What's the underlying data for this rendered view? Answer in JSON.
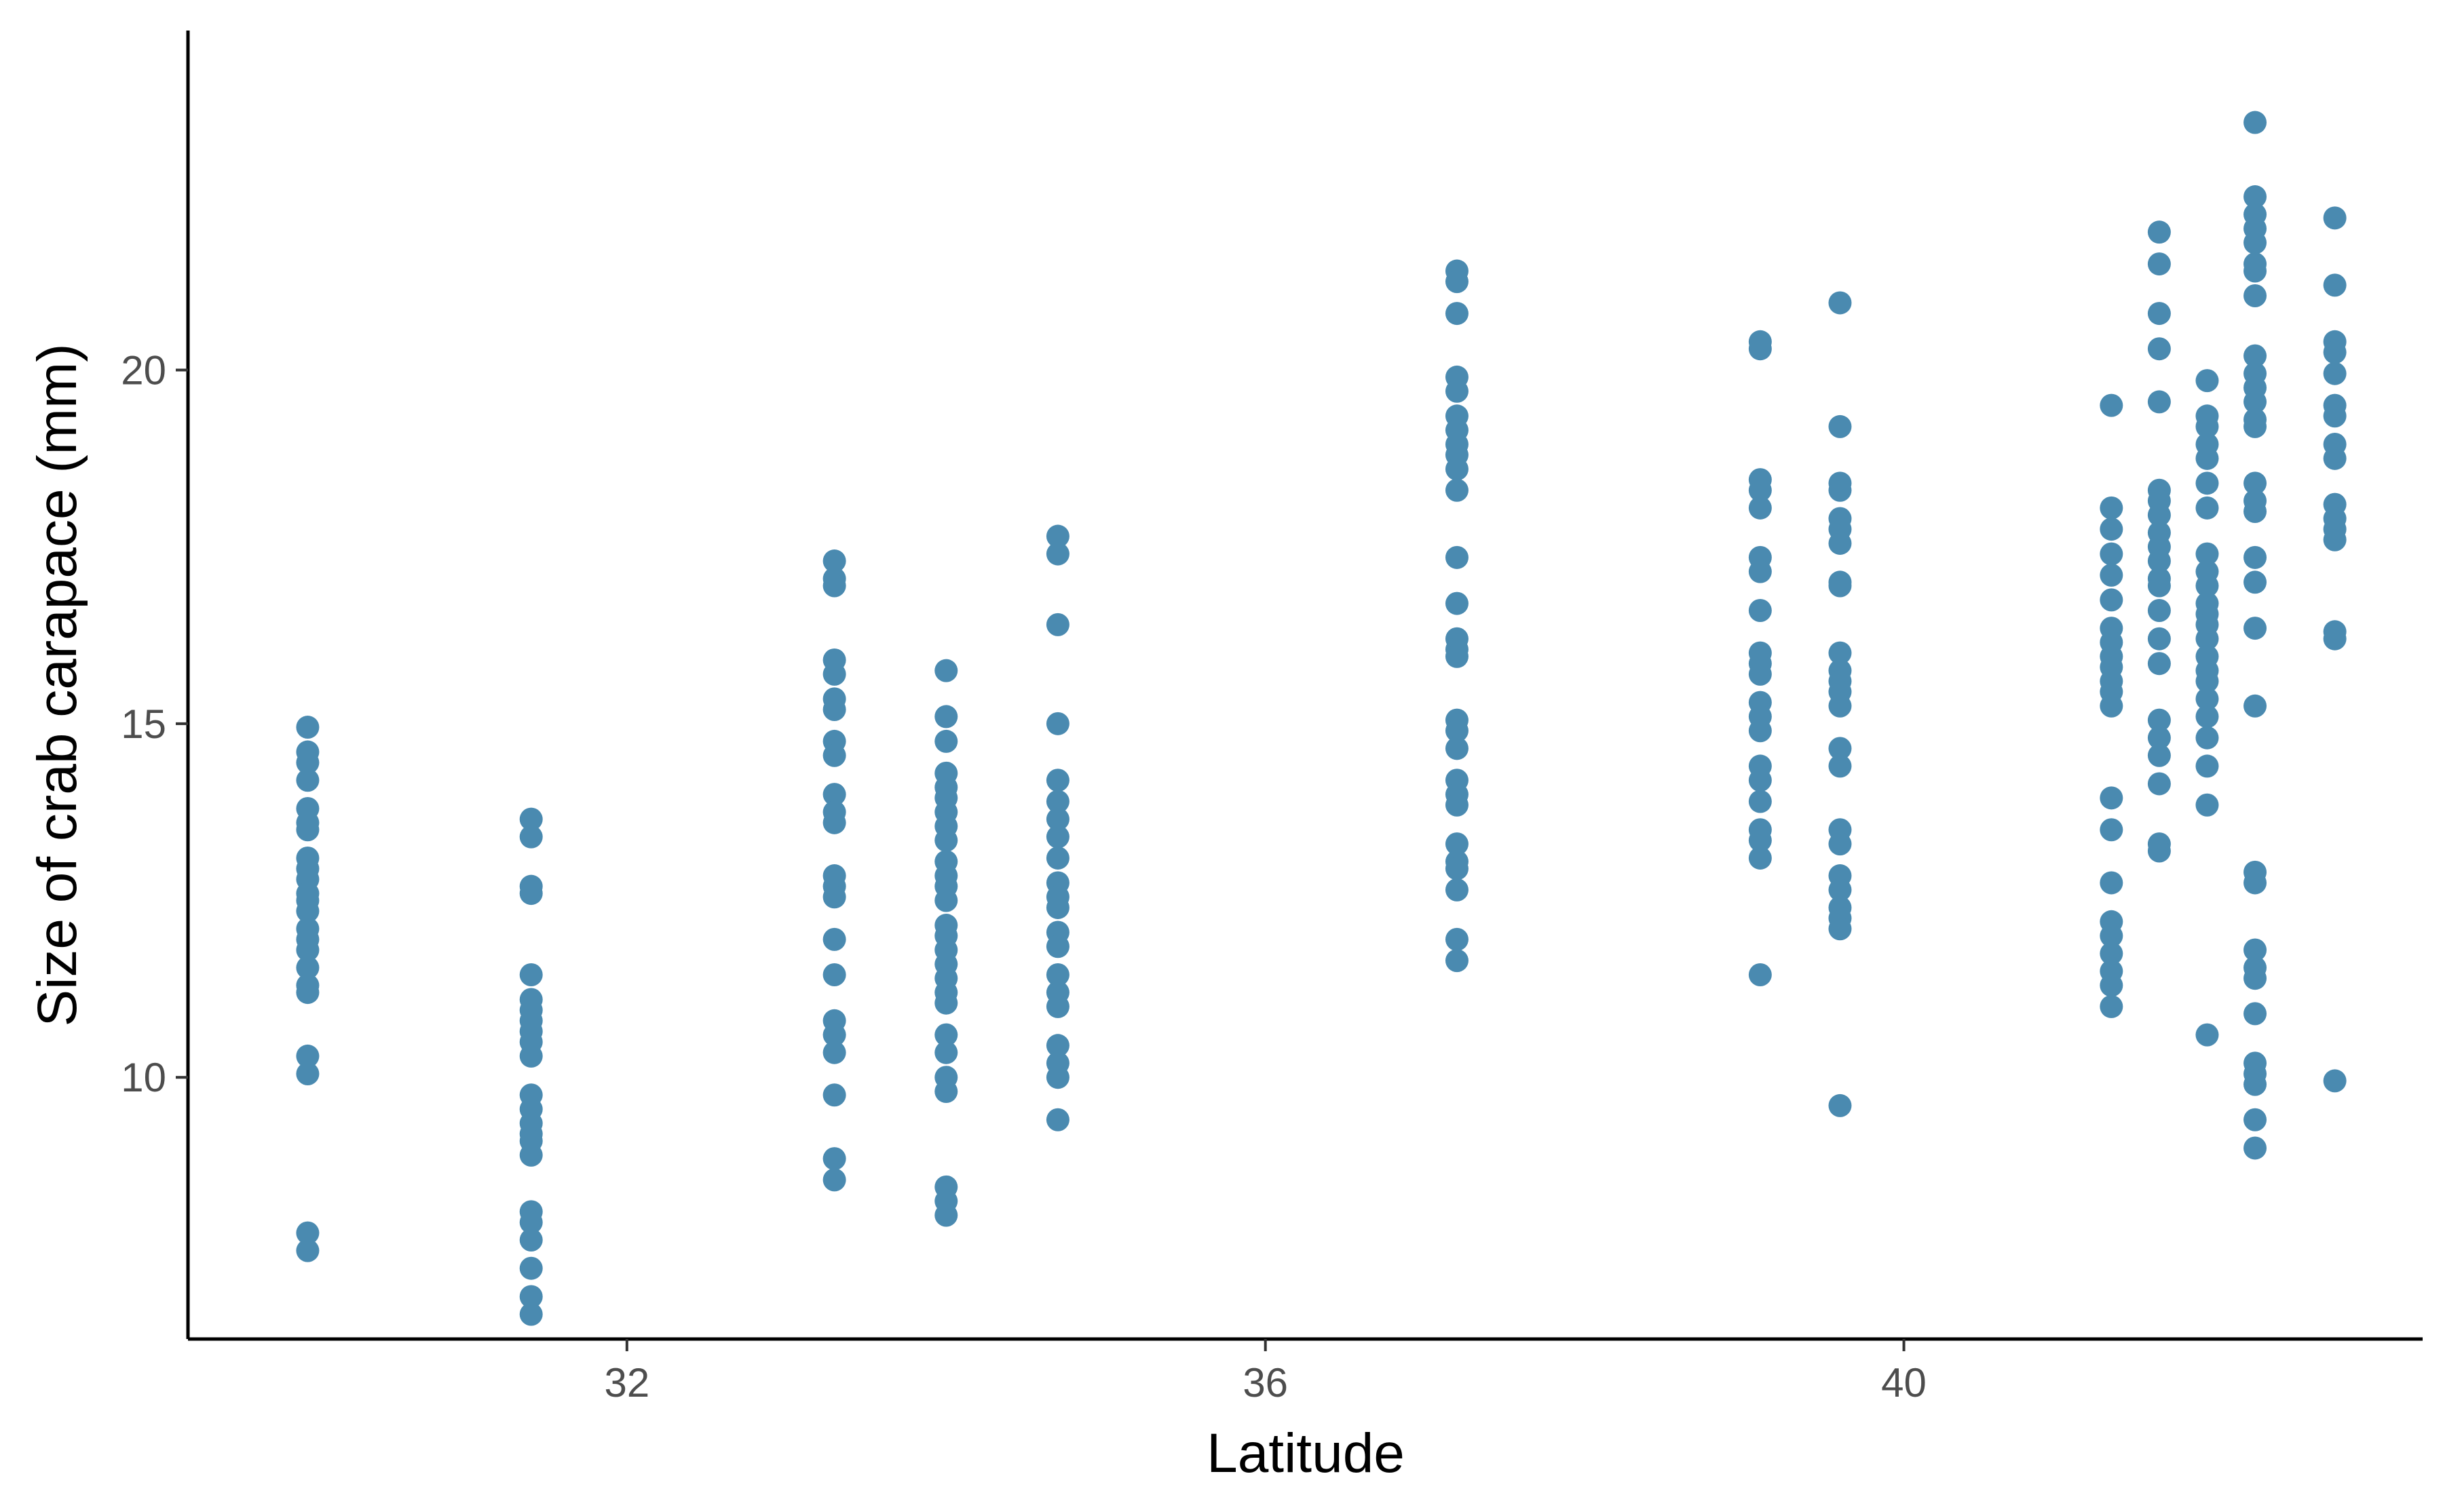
{
  "chart_data": {
    "type": "scatter",
    "title": "",
    "xlabel": "Latitude",
    "ylabel": "Size of crab carapace (mm)",
    "xlim": [
      29.25,
      43.25
    ],
    "ylim": [
      6.3,
      24.8
    ],
    "xticks": [
      32,
      36,
      40
    ],
    "yticks": [
      10,
      15,
      20
    ],
    "grid": false,
    "legend": "none",
    "point_color": "#4a8ab0",
    "series": [
      {
        "points": [
          [
            30.0,
            14.95
          ],
          [
            30.0,
            14.6
          ],
          [
            30.0,
            14.45
          ],
          [
            30.0,
            14.2
          ],
          [
            30.0,
            13.8
          ],
          [
            30.0,
            13.6
          ],
          [
            30.0,
            13.5
          ],
          [
            30.0,
            13.1
          ],
          [
            30.0,
            12.95
          ],
          [
            30.0,
            12.8
          ],
          [
            30.0,
            12.6
          ],
          [
            30.0,
            12.5
          ],
          [
            30.0,
            12.35
          ],
          [
            30.0,
            12.1
          ],
          [
            30.0,
            11.95
          ],
          [
            30.0,
            11.8
          ],
          [
            30.0,
            11.55
          ],
          [
            30.0,
            11.3
          ],
          [
            30.0,
            11.2
          ],
          [
            30.0,
            10.3
          ],
          [
            30.0,
            10.05
          ],
          [
            30.0,
            7.8
          ],
          [
            30.0,
            7.55
          ],
          [
            31.4,
            13.65
          ],
          [
            31.4,
            13.4
          ],
          [
            31.4,
            12.7
          ],
          [
            31.4,
            12.6
          ],
          [
            31.4,
            11.45
          ],
          [
            31.4,
            11.1
          ],
          [
            31.4,
            10.95
          ],
          [
            31.4,
            10.8
          ],
          [
            31.4,
            10.65
          ],
          [
            31.4,
            10.5
          ],
          [
            31.4,
            10.3
          ],
          [
            31.4,
            9.75
          ],
          [
            31.4,
            9.55
          ],
          [
            31.4,
            9.35
          ],
          [
            31.4,
            9.2
          ],
          [
            31.4,
            9.1
          ],
          [
            31.4,
            8.9
          ],
          [
            31.4,
            8.1
          ],
          [
            31.4,
            7.95
          ],
          [
            31.4,
            7.7
          ],
          [
            31.4,
            7.3
          ],
          [
            31.4,
            6.9
          ],
          [
            31.4,
            6.65
          ],
          [
            33.3,
            17.3
          ],
          [
            33.3,
            17.05
          ],
          [
            33.3,
            16.95
          ],
          [
            33.3,
            15.9
          ],
          [
            33.3,
            15.7
          ],
          [
            33.3,
            15.35
          ],
          [
            33.3,
            15.2
          ],
          [
            33.3,
            14.75
          ],
          [
            33.3,
            14.55
          ],
          [
            33.3,
            14.0
          ],
          [
            33.3,
            13.75
          ],
          [
            33.3,
            13.6
          ],
          [
            33.3,
            12.85
          ],
          [
            33.3,
            12.7
          ],
          [
            33.3,
            12.55
          ],
          [
            33.3,
            11.95
          ],
          [
            33.3,
            11.45
          ],
          [
            33.3,
            10.8
          ],
          [
            33.3,
            10.6
          ],
          [
            33.3,
            10.35
          ],
          [
            33.3,
            9.75
          ],
          [
            33.3,
            8.85
          ],
          [
            33.3,
            8.55
          ],
          [
            34.0,
            15.75
          ],
          [
            34.0,
            15.1
          ],
          [
            34.0,
            14.75
          ],
          [
            34.0,
            14.3
          ],
          [
            34.0,
            14.1
          ],
          [
            34.0,
            13.95
          ],
          [
            34.0,
            13.75
          ],
          [
            34.0,
            13.55
          ],
          [
            34.0,
            13.35
          ],
          [
            34.0,
            13.05
          ],
          [
            34.0,
            12.85
          ],
          [
            34.0,
            12.7
          ],
          [
            34.0,
            12.5
          ],
          [
            34.0,
            12.15
          ],
          [
            34.0,
            12.0
          ],
          [
            34.0,
            11.8
          ],
          [
            34.0,
            11.6
          ],
          [
            34.0,
            11.4
          ],
          [
            34.0,
            11.2
          ],
          [
            34.0,
            11.05
          ],
          [
            34.0,
            10.6
          ],
          [
            34.0,
            10.35
          ],
          [
            34.0,
            10.0
          ],
          [
            34.0,
            9.8
          ],
          [
            34.0,
            8.45
          ],
          [
            34.0,
            8.25
          ],
          [
            34.0,
            8.05
          ],
          [
            34.7,
            17.65
          ],
          [
            34.7,
            17.4
          ],
          [
            34.7,
            16.4
          ],
          [
            34.7,
            15.0
          ],
          [
            34.7,
            14.2
          ],
          [
            34.7,
            13.9
          ],
          [
            34.7,
            13.65
          ],
          [
            34.7,
            13.4
          ],
          [
            34.7,
            13.1
          ],
          [
            34.7,
            12.75
          ],
          [
            34.7,
            12.55
          ],
          [
            34.7,
            12.4
          ],
          [
            34.7,
            12.05
          ],
          [
            34.7,
            11.85
          ],
          [
            34.7,
            11.45
          ],
          [
            34.7,
            11.2
          ],
          [
            34.7,
            11.0
          ],
          [
            34.7,
            10.45
          ],
          [
            34.7,
            10.2
          ],
          [
            34.7,
            10.0
          ],
          [
            34.7,
            9.4
          ],
          [
            37.2,
            21.4
          ],
          [
            37.2,
            21.25
          ],
          [
            37.2,
            20.8
          ],
          [
            37.2,
            19.9
          ],
          [
            37.2,
            19.7
          ],
          [
            37.2,
            19.35
          ],
          [
            37.2,
            19.15
          ],
          [
            37.2,
            18.95
          ],
          [
            37.2,
            18.8
          ],
          [
            37.2,
            18.6
          ],
          [
            37.2,
            18.3
          ],
          [
            37.2,
            17.35
          ],
          [
            37.2,
            16.7
          ],
          [
            37.2,
            16.2
          ],
          [
            37.2,
            16.05
          ],
          [
            37.2,
            15.95
          ],
          [
            37.2,
            15.05
          ],
          [
            37.2,
            14.9
          ],
          [
            37.2,
            14.65
          ],
          [
            37.2,
            14.2
          ],
          [
            37.2,
            14.0
          ],
          [
            37.2,
            13.85
          ],
          [
            37.2,
            13.3
          ],
          [
            37.2,
            13.05
          ],
          [
            37.2,
            12.95
          ],
          [
            37.2,
            12.65
          ],
          [
            37.2,
            11.95
          ],
          [
            37.2,
            11.65
          ],
          [
            39.1,
            20.4
          ],
          [
            39.1,
            20.3
          ],
          [
            39.1,
            18.45
          ],
          [
            39.1,
            18.3
          ],
          [
            39.1,
            18.05
          ],
          [
            39.1,
            17.35
          ],
          [
            39.1,
            17.15
          ],
          [
            39.1,
            16.6
          ],
          [
            39.1,
            16.0
          ],
          [
            39.1,
            15.85
          ],
          [
            39.1,
            15.7
          ],
          [
            39.1,
            15.3
          ],
          [
            39.1,
            15.1
          ],
          [
            39.1,
            14.9
          ],
          [
            39.1,
            14.4
          ],
          [
            39.1,
            14.2
          ],
          [
            39.1,
            13.9
          ],
          [
            39.1,
            13.5
          ],
          [
            39.1,
            13.35
          ],
          [
            39.1,
            13.1
          ],
          [
            39.1,
            11.45
          ],
          [
            39.6,
            20.95
          ],
          [
            39.6,
            19.2
          ],
          [
            39.6,
            18.4
          ],
          [
            39.6,
            18.3
          ],
          [
            39.6,
            17.9
          ],
          [
            39.6,
            17.75
          ],
          [
            39.6,
            17.55
          ],
          [
            39.6,
            17.0
          ],
          [
            39.6,
            16.95
          ],
          [
            39.6,
            16.0
          ],
          [
            39.6,
            15.75
          ],
          [
            39.6,
            15.6
          ],
          [
            39.6,
            15.45
          ],
          [
            39.6,
            15.25
          ],
          [
            39.6,
            14.65
          ],
          [
            39.6,
            14.4
          ],
          [
            39.6,
            13.5
          ],
          [
            39.6,
            13.3
          ],
          [
            39.6,
            12.85
          ],
          [
            39.6,
            12.65
          ],
          [
            39.6,
            12.4
          ],
          [
            39.6,
            12.25
          ],
          [
            39.6,
            12.1
          ],
          [
            39.6,
            9.6
          ],
          [
            41.3,
            19.5
          ],
          [
            41.3,
            18.05
          ],
          [
            41.3,
            17.75
          ],
          [
            41.3,
            17.4
          ],
          [
            41.3,
            17.1
          ],
          [
            41.3,
            16.75
          ],
          [
            41.3,
            16.35
          ],
          [
            41.3,
            16.15
          ],
          [
            41.3,
            15.95
          ],
          [
            41.3,
            15.8
          ],
          [
            41.3,
            15.6
          ],
          [
            41.3,
            15.45
          ],
          [
            41.3,
            15.25
          ],
          [
            41.3,
            13.95
          ],
          [
            41.3,
            13.5
          ],
          [
            41.3,
            12.75
          ],
          [
            41.3,
            12.2
          ],
          [
            41.3,
            12.0
          ],
          [
            41.3,
            11.75
          ],
          [
            41.3,
            11.5
          ],
          [
            41.3,
            11.3
          ],
          [
            41.3,
            11.0
          ],
          [
            41.6,
            21.95
          ],
          [
            41.6,
            21.5
          ],
          [
            41.6,
            20.8
          ],
          [
            41.6,
            20.3
          ],
          [
            41.6,
            19.55
          ],
          [
            41.6,
            18.3
          ],
          [
            41.6,
            18.15
          ],
          [
            41.6,
            17.95
          ],
          [
            41.6,
            17.7
          ],
          [
            41.6,
            17.5
          ],
          [
            41.6,
            17.3
          ],
          [
            41.6,
            17.05
          ],
          [
            41.6,
            16.95
          ],
          [
            41.6,
            16.6
          ],
          [
            41.6,
            16.2
          ],
          [
            41.6,
            15.85
          ],
          [
            41.6,
            15.05
          ],
          [
            41.6,
            14.8
          ],
          [
            41.6,
            14.55
          ],
          [
            41.6,
            14.15
          ],
          [
            41.6,
            13.3
          ],
          [
            41.6,
            13.2
          ],
          [
            41.9,
            19.85
          ],
          [
            41.9,
            19.35
          ],
          [
            41.9,
            19.2
          ],
          [
            41.9,
            18.95
          ],
          [
            41.9,
            18.75
          ],
          [
            41.9,
            18.4
          ],
          [
            41.9,
            18.05
          ],
          [
            41.9,
            17.4
          ],
          [
            41.9,
            17.15
          ],
          [
            41.9,
            16.95
          ],
          [
            41.9,
            16.7
          ],
          [
            41.9,
            16.55
          ],
          [
            41.9,
            16.4
          ],
          [
            41.9,
            16.2
          ],
          [
            41.9,
            15.95
          ],
          [
            41.9,
            15.75
          ],
          [
            41.9,
            15.6
          ],
          [
            41.9,
            15.35
          ],
          [
            41.9,
            15.1
          ],
          [
            41.9,
            14.8
          ],
          [
            41.9,
            14.4
          ],
          [
            41.9,
            13.85
          ],
          [
            41.9,
            10.6
          ],
          [
            42.2,
            23.5
          ],
          [
            42.2,
            22.45
          ],
          [
            42.2,
            22.2
          ],
          [
            42.2,
            22.0
          ],
          [
            42.2,
            21.8
          ],
          [
            42.2,
            21.5
          ],
          [
            42.2,
            21.4
          ],
          [
            42.2,
            21.05
          ],
          [
            42.2,
            20.2
          ],
          [
            42.2,
            19.95
          ],
          [
            42.2,
            19.75
          ],
          [
            42.2,
            19.55
          ],
          [
            42.2,
            19.3
          ],
          [
            42.2,
            19.2
          ],
          [
            42.2,
            18.4
          ],
          [
            42.2,
            18.15
          ],
          [
            42.2,
            18.0
          ],
          [
            42.2,
            17.35
          ],
          [
            42.2,
            17.0
          ],
          [
            42.2,
            16.35
          ],
          [
            42.2,
            15.25
          ],
          [
            42.2,
            12.9
          ],
          [
            42.2,
            12.75
          ],
          [
            42.2,
            11.8
          ],
          [
            42.2,
            11.55
          ],
          [
            42.2,
            11.4
          ],
          [
            42.2,
            10.9
          ],
          [
            42.2,
            10.2
          ],
          [
            42.2,
            10.05
          ],
          [
            42.2,
            9.9
          ],
          [
            42.2,
            9.4
          ],
          [
            42.2,
            9.0
          ],
          [
            42.7,
            22.15
          ],
          [
            42.7,
            21.2
          ],
          [
            42.7,
            20.4
          ],
          [
            42.7,
            20.25
          ],
          [
            42.7,
            19.95
          ],
          [
            42.7,
            19.5
          ],
          [
            42.7,
            19.35
          ],
          [
            42.7,
            18.95
          ],
          [
            42.7,
            18.75
          ],
          [
            42.7,
            18.1
          ],
          [
            42.7,
            17.9
          ],
          [
            42.7,
            17.75
          ],
          [
            42.7,
            17.6
          ],
          [
            42.7,
            16.3
          ],
          [
            42.7,
            16.2
          ],
          [
            42.7,
            9.95
          ]
        ]
      }
    ]
  }
}
